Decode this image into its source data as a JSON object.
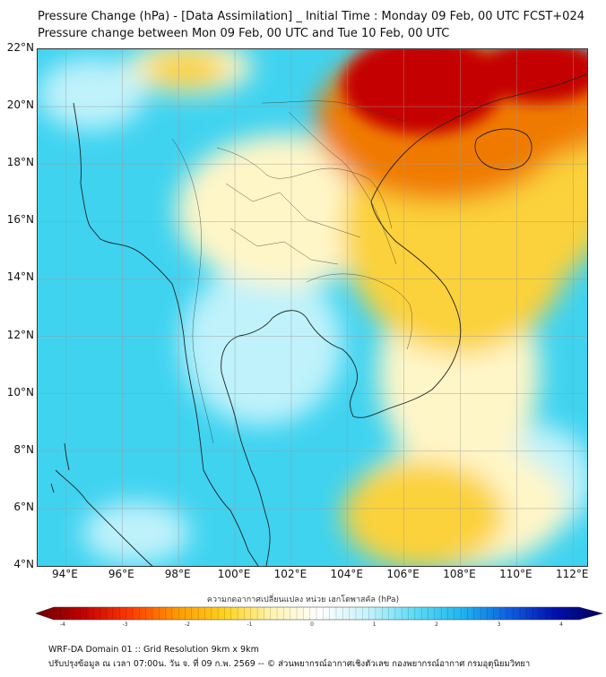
{
  "title": {
    "line1": "Pressure Change (hPa) - [Data Assimilation] _ Initial Time : Monday 09 Feb, 00 UTC FCST+024",
    "line2": "Pressure change between Mon 09 Feb, 00 UTC and Tue 10 Feb, 00 UTC"
  },
  "map": {
    "lat_labels": [
      "22°N",
      "20°N",
      "18°N",
      "16°N",
      "14°N",
      "12°N",
      "10°N",
      "8°N",
      "6°N",
      "4°N"
    ],
    "lon_labels": [
      "94°E",
      "96°E",
      "98°E",
      "100°E",
      "102°E",
      "104°E",
      "106°E",
      "108°E",
      "110°E",
      "112°E"
    ],
    "lat_range": [
      4,
      22
    ],
    "lon_range": [
      93,
      112.5
    ],
    "gridlines": true,
    "field_colors": {
      "base": "#3fd3f0",
      "deep_negative": "#c40000",
      "negative": "#f07a00",
      "slight_negative": "#fbd23a",
      "near_zero": "#fff6c8",
      "slight_positive": "#bff2fb"
    }
  },
  "colorbar": {
    "title": "ความกดอากาศเปลี่ยนแปลง หน่วย เฮกโตพาสคัล (hPa)",
    "tick_labels": [
      "-4",
      "-3",
      "-2",
      "-1",
      "0",
      "1",
      "2",
      "3",
      "4"
    ],
    "min": -4,
    "max": 4,
    "colors": [
      "#6a0000",
      "#c40000",
      "#ff3a00",
      "#ff9a00",
      "#ffd21e",
      "#fff4b0",
      "#ffffff",
      "#c8f3fb",
      "#5fdcf5",
      "#1fb8f0",
      "#1060e0",
      "#0010b0",
      "#00005a"
    ]
  },
  "footer": {
    "line1": "WRF-DA Domain 01 :: Grid Resolution 9km x 9km",
    "line2": "ปรับปรุงข้อมูล ณ เวลา 07:00น. วัน จ. ที่ 09 ก.พ. 2569 -- © ส่วนพยากรณ์อากาศเชิงตัวเลข กองพยากรณ์อากาศ กรมอุตุนิยมวิทยา"
  }
}
